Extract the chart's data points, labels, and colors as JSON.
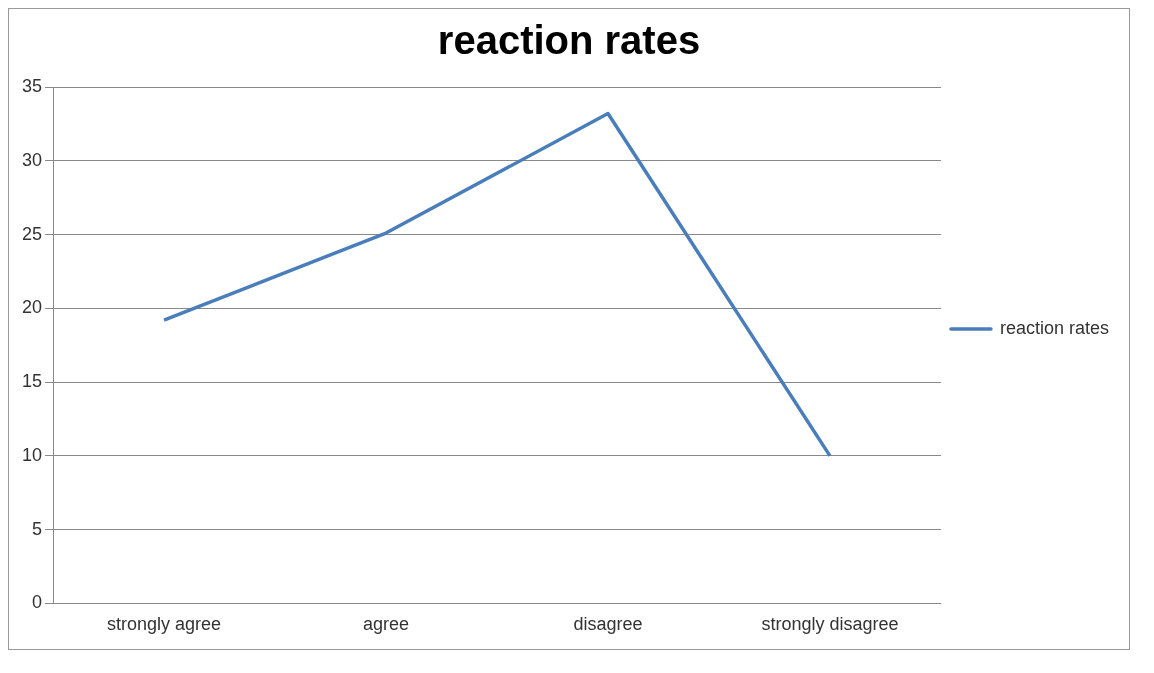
{
  "chart_data": {
    "type": "line",
    "title": "reaction rates",
    "categories": [
      "strongly agree",
      "agree",
      "disagree",
      "strongly disagree"
    ],
    "series": [
      {
        "name": "reaction rates",
        "color": "#4a7ebb",
        "values": [
          19.2,
          25.1,
          33.2,
          10
        ]
      }
    ],
    "ylim": [
      0,
      35
    ],
    "yticks": [
      0,
      5,
      10,
      15,
      20,
      25,
      30,
      35
    ],
    "grid": "y",
    "legend": "right",
    "marker": "none",
    "line_style": "solid"
  }
}
